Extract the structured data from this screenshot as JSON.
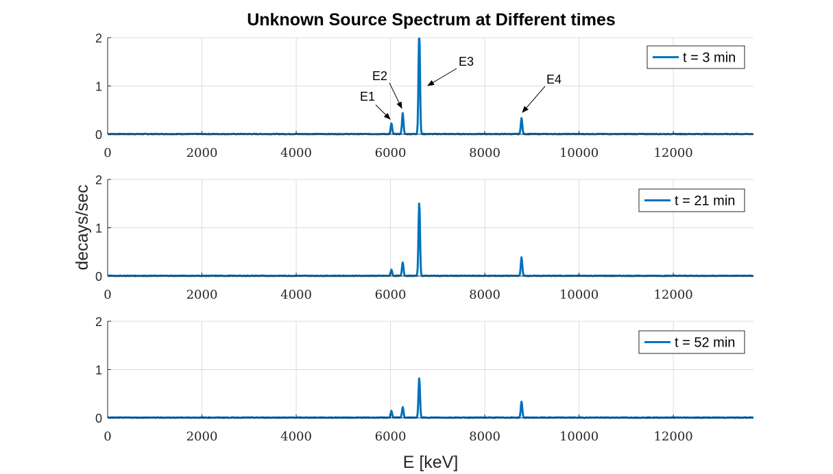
{
  "chart_data": {
    "type": "line",
    "title": "Unknown  Source Spectrum at Different times",
    "xlabel": "E [keV]",
    "ylabel": "decays/sec",
    "xlim": [
      0,
      13700
    ],
    "ylim": [
      0,
      2
    ],
    "xticks": [
      "0",
      "2000",
      "4000",
      "6000",
      "8000",
      "10000",
      "12000"
    ],
    "yticks": [
      "0",
      "1",
      "2"
    ],
    "grid": true,
    "legend_position": "top-right",
    "line_color": "#0072BD",
    "peaks_x": [
      6020,
      6260,
      6610,
      8780
    ],
    "subplots": [
      {
        "series": [
          {
            "name": "t = 3 min",
            "peaks_y": [
              0.22,
              0.43,
              2.1,
              0.33
            ]
          }
        ]
      },
      {
        "series": [
          {
            "name": "t = 21 min",
            "peaks_y": [
              0.13,
              0.28,
              1.52,
              0.38
            ]
          }
        ]
      },
      {
        "series": [
          {
            "name": "t = 52 min",
            "peaks_y": [
              0.14,
              0.22,
              0.82,
              0.33
            ]
          }
        ]
      }
    ],
    "annotations": [
      {
        "text": "E1",
        "target_x": 6020,
        "target_y": 0.22
      },
      {
        "text": "E2",
        "target_x": 6260,
        "target_y": 0.43
      },
      {
        "text": "E3",
        "target_x": 6610,
        "target_y": 1.0
      },
      {
        "text": "E4",
        "target_x": 8780,
        "target_y": 0.33
      }
    ]
  }
}
